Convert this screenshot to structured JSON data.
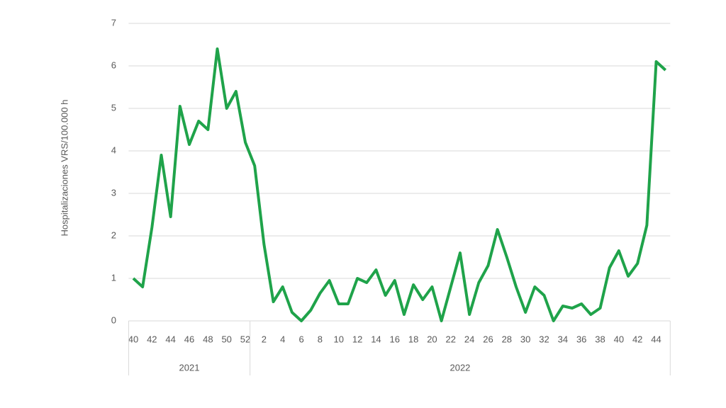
{
  "chart_data": {
    "type": "line",
    "y_label": "Hospitalizaciones VRS/100.000 h",
    "categories": [
      "40",
      null,
      "42",
      null,
      "44",
      null,
      "46",
      null,
      "48",
      null,
      "50",
      null,
      "52",
      null,
      "2",
      null,
      "4",
      null,
      "6",
      null,
      "8",
      null,
      "10",
      null,
      "12",
      null,
      "14",
      null,
      "16",
      null,
      "18",
      null,
      "20",
      null,
      "22",
      null,
      "24",
      null,
      "26",
      null,
      "28",
      null,
      "30",
      null,
      "32",
      null,
      "34",
      null,
      "36",
      null,
      "38",
      null,
      "40",
      null,
      "42",
      null,
      "44",
      null
    ],
    "groups": [
      {
        "label": "2021",
        "size": 13
      },
      {
        "label": "2022",
        "size": 45
      }
    ],
    "series": [
      {
        "name": "Hospitalizaciones VRS",
        "color": "#1fa34a",
        "values": [
          1.0,
          0.8,
          2.2,
          3.9,
          2.45,
          5.05,
          4.15,
          4.7,
          4.5,
          6.4,
          5.0,
          5.4,
          4.2,
          3.65,
          1.8,
          0.45,
          0.8,
          0.2,
          0.0,
          0.25,
          0.65,
          0.95,
          0.4,
          0.4,
          1.0,
          0.9,
          1.2,
          0.6,
          0.95,
          0.15,
          0.85,
          0.5,
          0.8,
          0.0,
          0.8,
          1.6,
          0.15,
          0.9,
          1.3,
          2.15,
          1.5,
          0.8,
          0.2,
          0.8,
          0.6,
          0.0,
          0.35,
          0.3,
          0.4,
          0.15,
          0.3,
          1.25,
          1.65,
          1.05,
          1.35,
          2.25,
          6.1,
          5.9
        ]
      }
    ],
    "ylim": [
      0,
      7
    ],
    "yticks": [
      0,
      1,
      2,
      3,
      4,
      5,
      6,
      7
    ],
    "grid": true
  }
}
